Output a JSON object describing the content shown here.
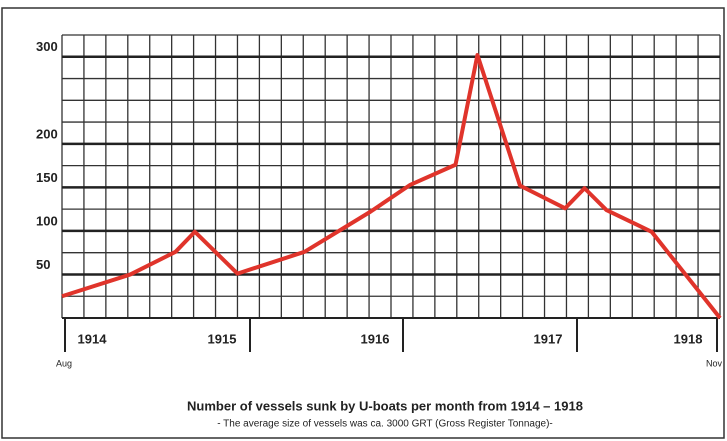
{
  "chart_data": {
    "type": "line",
    "title": "Number of vessels sunk by U-boats per month from 1914 – 1918",
    "subtitle": "- The average size of vessels was ca. 3000 GRT (Gross Register Tonnage)-",
    "x": [
      0,
      5.3,
      8.8,
      10.3,
      13.6,
      18.8,
      23.9,
      27,
      30.5,
      32.2,
      35.5,
      39,
      40.5,
      42.2,
      45.7,
      51
    ],
    "series": [
      {
        "name": "Vessels sunk",
        "color": "#e0342b",
        "values": [
          25,
          50,
          76,
          99,
          51,
          76,
          122,
          153,
          176,
          302,
          152,
          126,
          149,
          124,
          99,
          0
        ]
      }
    ],
    "xlim": [
      0,
      51
    ],
    "ylim": [
      0,
      325
    ],
    "yticks": [
      50,
      100,
      150,
      200,
      300
    ],
    "years": [
      "1914",
      "1915",
      "1916",
      "1917",
      "1918"
    ],
    "start_label": "Aug",
    "end_label": "Nov",
    "grid": true
  }
}
